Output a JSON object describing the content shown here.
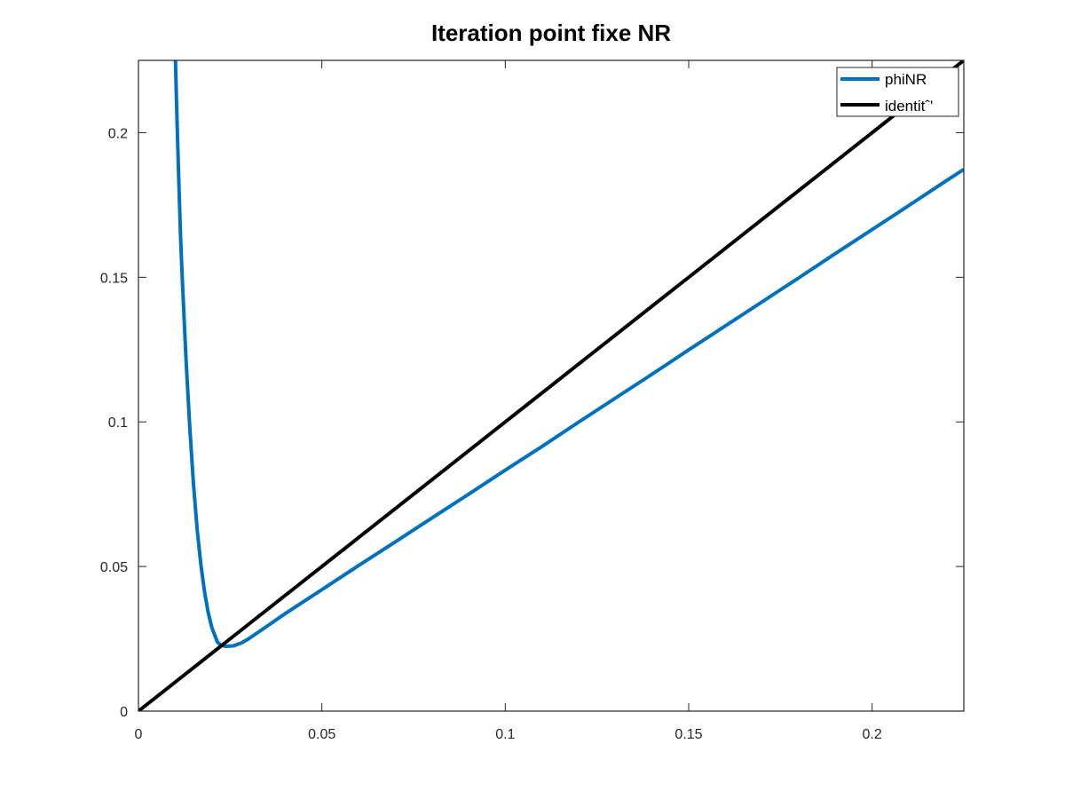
{
  "chart_data": {
    "type": "line",
    "title": "Iteration point fixe NR",
    "xlabel": "",
    "ylabel": "",
    "xlim": [
      0,
      0.225
    ],
    "ylim": [
      0,
      0.225
    ],
    "grid": false,
    "legend_position": "top-right",
    "x_ticks": [
      0,
      0.05,
      0.1,
      0.15,
      0.2
    ],
    "y_ticks": [
      0,
      0.05,
      0.1,
      0.15,
      0.2
    ],
    "x_tick_labels": [
      "0",
      "0.05",
      "0.1",
      "0.15",
      "0.2"
    ],
    "y_tick_labels": [
      "0",
      "0.05",
      "0.1",
      "0.15",
      "0.2"
    ],
    "series": [
      {
        "name": "phiNR",
        "color": "#0072BD",
        "x": [
          0.0101,
          0.0105,
          0.011,
          0.0115,
          0.012,
          0.013,
          0.014,
          0.015,
          0.016,
          0.017,
          0.018,
          0.019,
          0.02,
          0.0215,
          0.0225,
          0.024,
          0.026,
          0.028,
          0.03,
          0.035,
          0.04,
          0.05,
          0.06,
          0.07,
          0.08,
          0.09,
          0.1,
          0.11,
          0.12,
          0.13,
          0.14,
          0.15,
          0.16,
          0.17,
          0.18,
          0.19,
          0.2,
          0.21,
          0.22,
          0.225
        ],
        "y": [
          0.2249,
          0.2049,
          0.183,
          0.1635,
          0.1481,
          0.121,
          0.0979,
          0.0785,
          0.063,
          0.0508,
          0.0414,
          0.0342,
          0.0289,
          0.0239,
          0.0227,
          0.0224,
          0.0226,
          0.0235,
          0.025,
          0.0293,
          0.0337,
          0.042,
          0.0503,
          0.0585,
          0.0668,
          0.075,
          0.0833,
          0.0915,
          0.0999,
          0.1082,
          0.1165,
          0.1249,
          0.1332,
          0.1415,
          0.1498,
          0.1582,
          0.1665,
          0.1748,
          0.1832,
          0.1873
        ]
      },
      {
        "name": "identitˆ'",
        "color": "#000000",
        "x": [
          0,
          0.225
        ],
        "y": [
          0,
          0.225
        ]
      }
    ]
  }
}
